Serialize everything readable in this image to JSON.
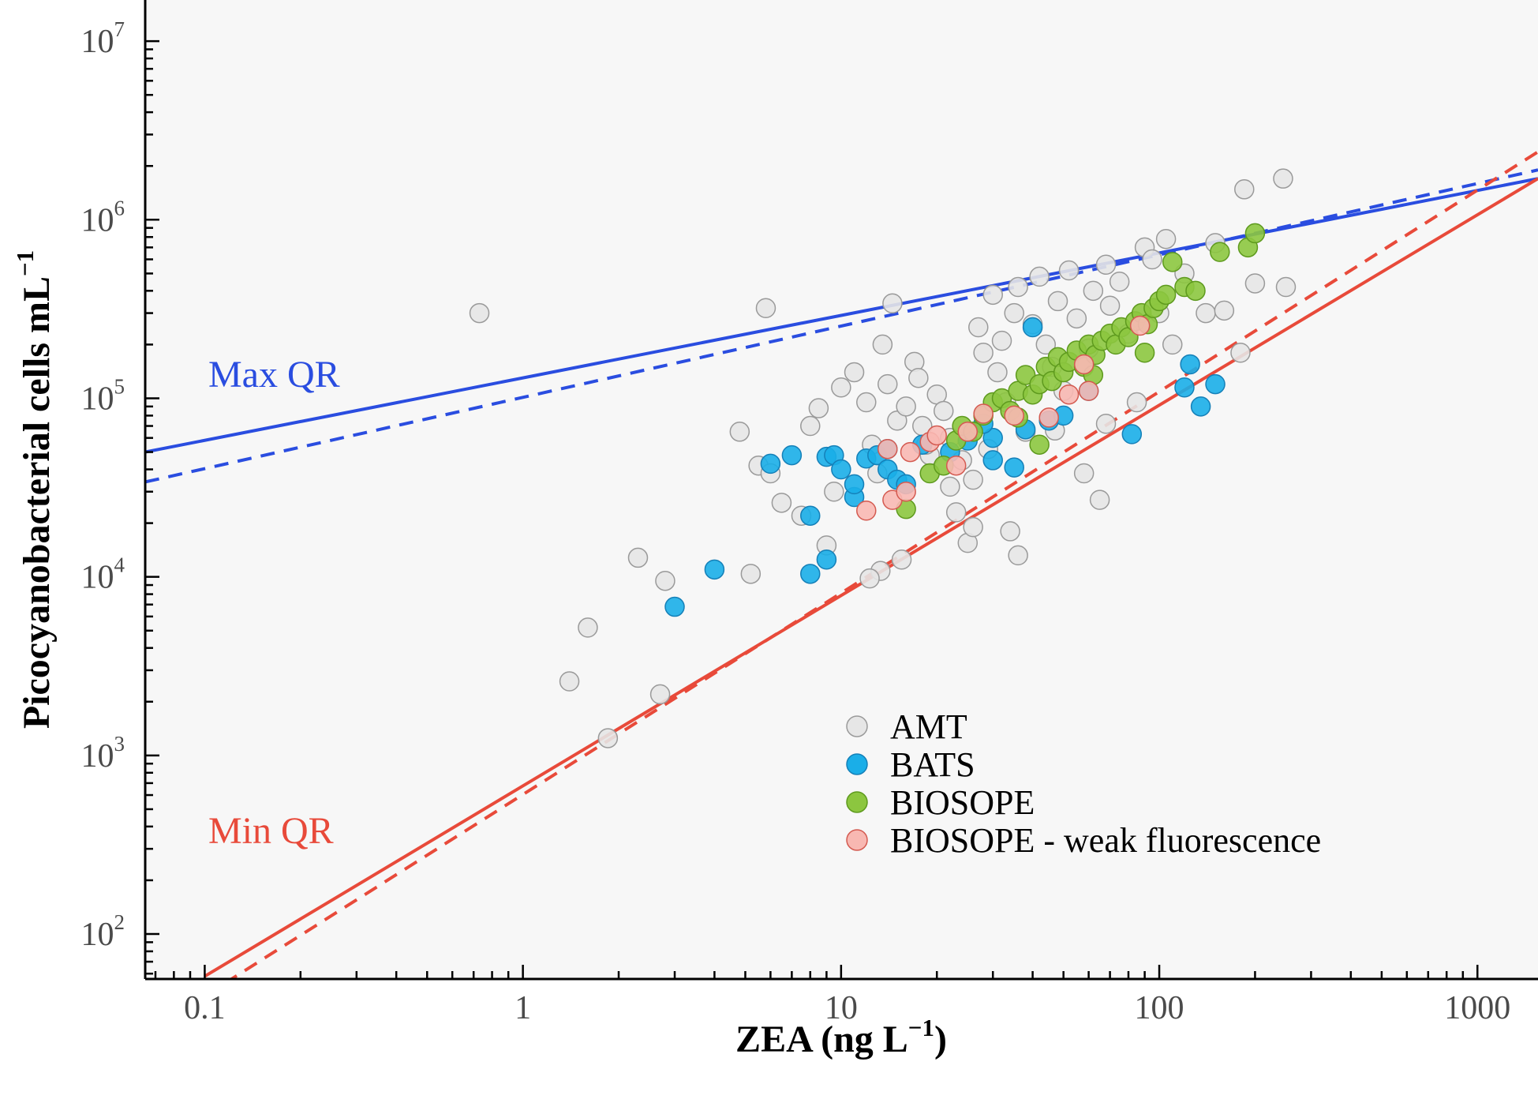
{
  "chart_data": {
    "type": "scatter",
    "title": "",
    "xlabel": "ZEA (ng L",
    "xlabel_sup": "−1",
    "xlabel_close": ")",
    "ylabel": "Picocyanobacterial cells mL",
    "ylabel_sup": "−1",
    "x_scale": "log",
    "y_scale": "log",
    "xlim": [
      0.065,
      1550
    ],
    "ylim": [
      56,
      17000000
    ],
    "x_ticks": [
      {
        "value": 0.1,
        "label": "0.1"
      },
      {
        "value": 1,
        "label": "1"
      },
      {
        "value": 10,
        "label": "10"
      },
      {
        "value": 100,
        "label": "100"
      },
      {
        "value": 1000,
        "label": "1000"
      }
    ],
    "y_ticks": [
      {
        "value": 100,
        "base": "10",
        "exp": "2"
      },
      {
        "value": 1000,
        "base": "10",
        "exp": "3"
      },
      {
        "value": 10000,
        "base": "10",
        "exp": "4"
      },
      {
        "value": 100000,
        "base": "10",
        "exp": "5"
      },
      {
        "value": 1000000,
        "base": "10",
        "exp": "6"
      },
      {
        "value": 10000000,
        "base": "10",
        "exp": "7"
      }
    ],
    "grid": false,
    "background": "#f7f7f7",
    "legend_position": "bottom-center",
    "series": [
      {
        "name": "AMT",
        "fill": "#e6e6e6",
        "stroke": "#9a9a9a",
        "points": [
          [
            0.73,
            300000
          ],
          [
            5.8,
            320000
          ],
          [
            1.4,
            2600
          ],
          [
            1.6,
            5200
          ],
          [
            1.85,
            1250
          ],
          [
            2.3,
            12800
          ],
          [
            2.7,
            2200
          ],
          [
            2.8,
            9500
          ],
          [
            5.2,
            10400
          ],
          [
            4.8,
            65000
          ],
          [
            5.5,
            42000
          ],
          [
            6.0,
            38000
          ],
          [
            6.5,
            26000
          ],
          [
            7.5,
            22000
          ],
          [
            8.5,
            88000
          ],
          [
            8.0,
            70000
          ],
          [
            9.0,
            15000
          ],
          [
            9.5,
            30000
          ],
          [
            10.0,
            115000
          ],
          [
            11.0,
            140000
          ],
          [
            12.0,
            95000
          ],
          [
            12.5,
            55000
          ],
          [
            13.0,
            38000
          ],
          [
            13.5,
            200000
          ],
          [
            14.0,
            120000
          ],
          [
            14.5,
            340000
          ],
          [
            15.0,
            75000
          ],
          [
            15.5,
            12500
          ],
          [
            16.0,
            90000
          ],
          [
            17.0,
            160000
          ],
          [
            17.5,
            130000
          ],
          [
            18.0,
            70000
          ],
          [
            19.0,
            48000
          ],
          [
            20.0,
            105000
          ],
          [
            21.0,
            85000
          ],
          [
            22.0,
            60000
          ],
          [
            23.0,
            23000
          ],
          [
            24.0,
            45000
          ],
          [
            25.0,
            15500
          ],
          [
            26.0,
            35000
          ],
          [
            27.0,
            250000
          ],
          [
            28.0,
            180000
          ],
          [
            30.0,
            380000
          ],
          [
            31.0,
            140000
          ],
          [
            32.0,
            210000
          ],
          [
            33.0,
            95000
          ],
          [
            34.0,
            18000
          ],
          [
            35.0,
            300000
          ],
          [
            36.0,
            420000
          ],
          [
            38.0,
            65000
          ],
          [
            40.0,
            260000
          ],
          [
            42.0,
            480000
          ],
          [
            44.0,
            200000
          ],
          [
            46.0,
            150000
          ],
          [
            48.0,
            350000
          ],
          [
            50.0,
            110000
          ],
          [
            52.0,
            520000
          ],
          [
            55.0,
            280000
          ],
          [
            58.0,
            38000
          ],
          [
            60.0,
            190000
          ],
          [
            62.0,
            400000
          ],
          [
            65.0,
            27000
          ],
          [
            68.0,
            560000
          ],
          [
            70.0,
            330000
          ],
          [
            75.0,
            450000
          ],
          [
            80.0,
            230000
          ],
          [
            85.0,
            95000
          ],
          [
            90.0,
            700000
          ],
          [
            95.0,
            600000
          ],
          [
            100.0,
            300000
          ],
          [
            105.0,
            780000
          ],
          [
            110.0,
            200000
          ],
          [
            120.0,
            500000
          ],
          [
            140.0,
            300000
          ],
          [
            150.0,
            740000
          ],
          [
            160.0,
            310000
          ],
          [
            180.0,
            180000
          ],
          [
            185.0,
            1480000
          ],
          [
            200.0,
            440000
          ],
          [
            245.0,
            1700000
          ],
          [
            250.0,
            420000
          ],
          [
            13.3,
            10800
          ],
          [
            12.3,
            9800
          ],
          [
            36.0,
            13200
          ],
          [
            26.0,
            19000
          ],
          [
            22.0,
            32000
          ],
          [
            18.5,
            55000
          ],
          [
            29.0,
            52000
          ],
          [
            47.0,
            66000
          ],
          [
            68.0,
            72000
          ]
        ]
      },
      {
        "name": "BATS",
        "fill": "#1aaee8",
        "stroke": "#1580b8",
        "points": [
          [
            3.0,
            6800
          ],
          [
            4.0,
            11000
          ],
          [
            6.0,
            43000
          ],
          [
            7.0,
            48000
          ],
          [
            8.0,
            10400
          ],
          [
            8.0,
            22000
          ],
          [
            9.0,
            12500
          ],
          [
            9.0,
            47000
          ],
          [
            9.5,
            48000
          ],
          [
            10.0,
            40000
          ],
          [
            11.0,
            28000
          ],
          [
            11.0,
            33000
          ],
          [
            12.0,
            46000
          ],
          [
            13.0,
            48000
          ],
          [
            14.0,
            52000
          ],
          [
            14.0,
            40000
          ],
          [
            15.0,
            35000
          ],
          [
            16.0,
            33000
          ],
          [
            18.0,
            55000
          ],
          [
            22.0,
            50000
          ],
          [
            25.0,
            58000
          ],
          [
            30.0,
            60000
          ],
          [
            35.0,
            41000
          ],
          [
            40.0,
            250000
          ],
          [
            45.0,
            75000
          ],
          [
            50.0,
            80000
          ],
          [
            60.0,
            110000
          ],
          [
            82.0,
            63000
          ],
          [
            120.0,
            115000
          ],
          [
            125.0,
            155000
          ],
          [
            135.0,
            90000
          ],
          [
            150.0,
            120000
          ],
          [
            30.0,
            45000
          ],
          [
            38.0,
            67000
          ],
          [
            28.0,
            72000
          ]
        ]
      },
      {
        "name": "BIOSOPE",
        "fill": "#8cc63f",
        "stroke": "#5e9a1e",
        "points": [
          [
            16.0,
            24000
          ],
          [
            19.0,
            38000
          ],
          [
            21.0,
            42000
          ],
          [
            23.0,
            58000
          ],
          [
            24.0,
            70000
          ],
          [
            26.0,
            65000
          ],
          [
            28.0,
            80000
          ],
          [
            30.0,
            95000
          ],
          [
            32.0,
            100000
          ],
          [
            34.0,
            85000
          ],
          [
            36.0,
            110000
          ],
          [
            38.0,
            135000
          ],
          [
            40.0,
            105000
          ],
          [
            42.0,
            120000
          ],
          [
            44.0,
            150000
          ],
          [
            46.0,
            125000
          ],
          [
            48.0,
            170000
          ],
          [
            50.0,
            140000
          ],
          [
            52.0,
            160000
          ],
          [
            55.0,
            185000
          ],
          [
            58.0,
            150000
          ],
          [
            60.0,
            200000
          ],
          [
            63.0,
            175000
          ],
          [
            66.0,
            210000
          ],
          [
            70.0,
            230000
          ],
          [
            73.0,
            200000
          ],
          [
            76.0,
            250000
          ],
          [
            80.0,
            220000
          ],
          [
            84.0,
            270000
          ],
          [
            88.0,
            300000
          ],
          [
            92.0,
            260000
          ],
          [
            96.0,
            320000
          ],
          [
            100.0,
            350000
          ],
          [
            105.0,
            380000
          ],
          [
            110.0,
            580000
          ],
          [
            120.0,
            420000
          ],
          [
            130.0,
            400000
          ],
          [
            155.0,
            660000
          ],
          [
            190.0,
            700000
          ],
          [
            200.0,
            840000
          ],
          [
            42.0,
            55000
          ],
          [
            36.0,
            78000
          ],
          [
            62.0,
            135000
          ],
          [
            90.0,
            180000
          ]
        ]
      },
      {
        "name": "BIOSOPE - weak fluorescence",
        "fill": "#f8b8b2",
        "stroke": "#d45a50",
        "points": [
          [
            12.0,
            23500
          ],
          [
            14.0,
            52000
          ],
          [
            14.5,
            27000
          ],
          [
            16.0,
            30000
          ],
          [
            16.5,
            50000
          ],
          [
            19.0,
            57000
          ],
          [
            20.0,
            62000
          ],
          [
            23.0,
            42000
          ],
          [
            25.0,
            65000
          ],
          [
            28.0,
            82000
          ],
          [
            35.0,
            80000
          ],
          [
            45.0,
            78000
          ],
          [
            52.0,
            105000
          ],
          [
            58.0,
            155000
          ],
          [
            60.0,
            110000
          ],
          [
            87.0,
            255000
          ]
        ]
      }
    ],
    "lines": [
      {
        "name": "Max QR fit",
        "color": "#2a4de0",
        "style": "solid",
        "x": [
          0.065,
          1550
        ],
        "y": [
          50000,
          1700000
        ]
      },
      {
        "name": "Max QR fit dashed",
        "color": "#2a4de0",
        "style": "dashed",
        "x": [
          0.065,
          1550
        ],
        "y": [
          34000,
          1900000
        ]
      },
      {
        "name": "Min QR fit",
        "color": "#e84a3a",
        "style": "solid",
        "x": [
          0.1,
          1550
        ],
        "y": [
          58,
          1700000
        ]
      },
      {
        "name": "Min QR fit dashed",
        "color": "#e84a3a",
        "style": "dashed",
        "x": [
          0.1,
          1550
        ],
        "y": [
          45,
          2400000
        ]
      }
    ],
    "annotations": [
      {
        "id": "max_qr",
        "text": "Max QR",
        "color": "#2a4de0"
      },
      {
        "id": "min_qr",
        "text": "Min QR",
        "color": "#e84a3a"
      }
    ],
    "legend": [
      {
        "label": "AMT",
        "fill": "#e6e6e6",
        "stroke": "#9a9a9a"
      },
      {
        "label": "BATS",
        "fill": "#1aaee8",
        "stroke": "#1580b8"
      },
      {
        "label": "BIOSOPE",
        "fill": "#8cc63f",
        "stroke": "#5e9a1e"
      },
      {
        "label": "BIOSOPE - weak fluorescence",
        "fill": "#f8b8b2",
        "stroke": "#d45a50"
      }
    ]
  }
}
